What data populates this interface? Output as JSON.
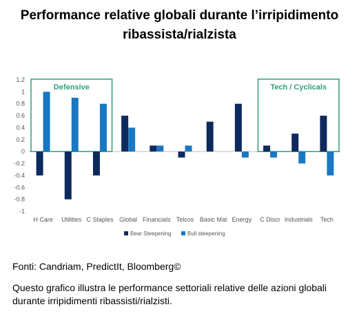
{
  "title_line1": "Performance relative globali durante l’irripidimento",
  "title_line2": "ribassista/rialzista",
  "source": "Fonti: Candriam, PredictIt, Bloomberg©",
  "description": "Questo grafico illustra le performance settoriali relative delle azioni globali durante irripidimenti ribassisti/rialzisti.",
  "colors": {
    "bear": "#0d2a5c",
    "bull": "#1a78c2",
    "box": "#2e9e7a"
  },
  "chart_data": {
    "type": "bar",
    "categories": [
      "H Care",
      "Utilities",
      "C Staples",
      "Global",
      "Financials",
      "Telcos",
      "Basic Mat",
      "Energy",
      "C Discr",
      "Industrials",
      "Tech"
    ],
    "series": [
      {
        "name": "Bear Steepening",
        "values": [
          -0.4,
          -0.8,
          -0.4,
          0.6,
          0.1,
          -0.1,
          0.5,
          0.8,
          0.1,
          0.3,
          0.6
        ]
      },
      {
        "name": "Bull steepening",
        "values": [
          1.0,
          0.9,
          0.8,
          0.4,
          0.1,
          0.1,
          0.0,
          -0.1,
          -0.1,
          -0.2,
          -0.4
        ]
      }
    ],
    "ylim": [
      -1,
      1.2
    ],
    "yticks": [
      "1.2",
      "1",
      "0.8",
      "0.6",
      "0.4",
      "0.2",
      "0",
      "-0.2",
      "-0.4",
      "-0.6",
      "-0.8",
      "-1"
    ],
    "legend_position": "bottom",
    "annotations": [
      {
        "text": "Defensive",
        "categories": [
          "H Care",
          "Utilities",
          "C Staples"
        ]
      },
      {
        "text": "Tech / Cyclicals",
        "categories": [
          "C Discr",
          "Industrials",
          "Tech"
        ]
      }
    ]
  }
}
